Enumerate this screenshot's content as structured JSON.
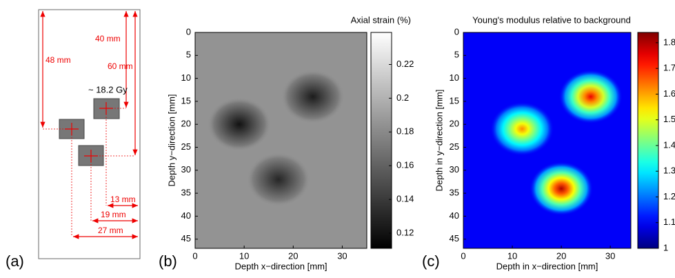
{
  "diagram": {
    "panel_label": "(a)",
    "dose": "~ 18.2 Gy",
    "labels": [
      "48 mm",
      "40 mm",
      "60 mm",
      "13 mm",
      "19 mm",
      "27 mm"
    ]
  },
  "chart_data": [
    {
      "type": "heatmap",
      "panel_label": "(b)",
      "title": "Axial strain (%)",
      "colormap": "gray",
      "xlabel": "Depth x−direction [mm]",
      "ylabel": "Depth y−direction [mm]",
      "xlim": [
        0,
        35
      ],
      "xticks": [
        0,
        10,
        20,
        30
      ],
      "ylim": [
        0,
        47
      ],
      "yticks": [
        0,
        5,
        10,
        15,
        20,
        25,
        30,
        35,
        40,
        45
      ],
      "zlim": [
        0.111,
        0.239
      ],
      "zticks": [
        0.12,
        0.14,
        0.16,
        0.18,
        0.2,
        0.22
      ],
      "background": 0.185,
      "blobs": [
        {
          "x": 9,
          "y": 20,
          "value": 0.12
        },
        {
          "x": 24,
          "y": 14,
          "value": 0.125
        },
        {
          "x": 17,
          "y": 32,
          "value": 0.13
        }
      ]
    },
    {
      "type": "heatmap",
      "panel_label": "(c)",
      "title": "Young's modulus relative to background",
      "colormap": "jet",
      "xlabel": "Depth in x−direction [mm]",
      "ylabel": "Depth in y−direction [mm]",
      "xlim": [
        0,
        34.2
      ],
      "xticks": [
        0,
        10,
        20,
        30
      ],
      "ylim": [
        0,
        47
      ],
      "yticks": [
        0,
        5,
        10,
        15,
        20,
        25,
        30,
        35,
        40,
        45
      ],
      "zlim": [
        1,
        1.84
      ],
      "zticks": [
        1,
        1.1,
        1.2,
        1.3,
        1.4,
        1.5,
        1.6,
        1.7,
        1.8
      ],
      "background": 1.1,
      "blobs": [
        {
          "x": 12,
          "y": 21,
          "value": 1.62
        },
        {
          "x": 26,
          "y": 14,
          "value": 1.75
        },
        {
          "x": 20,
          "y": 34,
          "value": 1.8
        }
      ]
    }
  ]
}
